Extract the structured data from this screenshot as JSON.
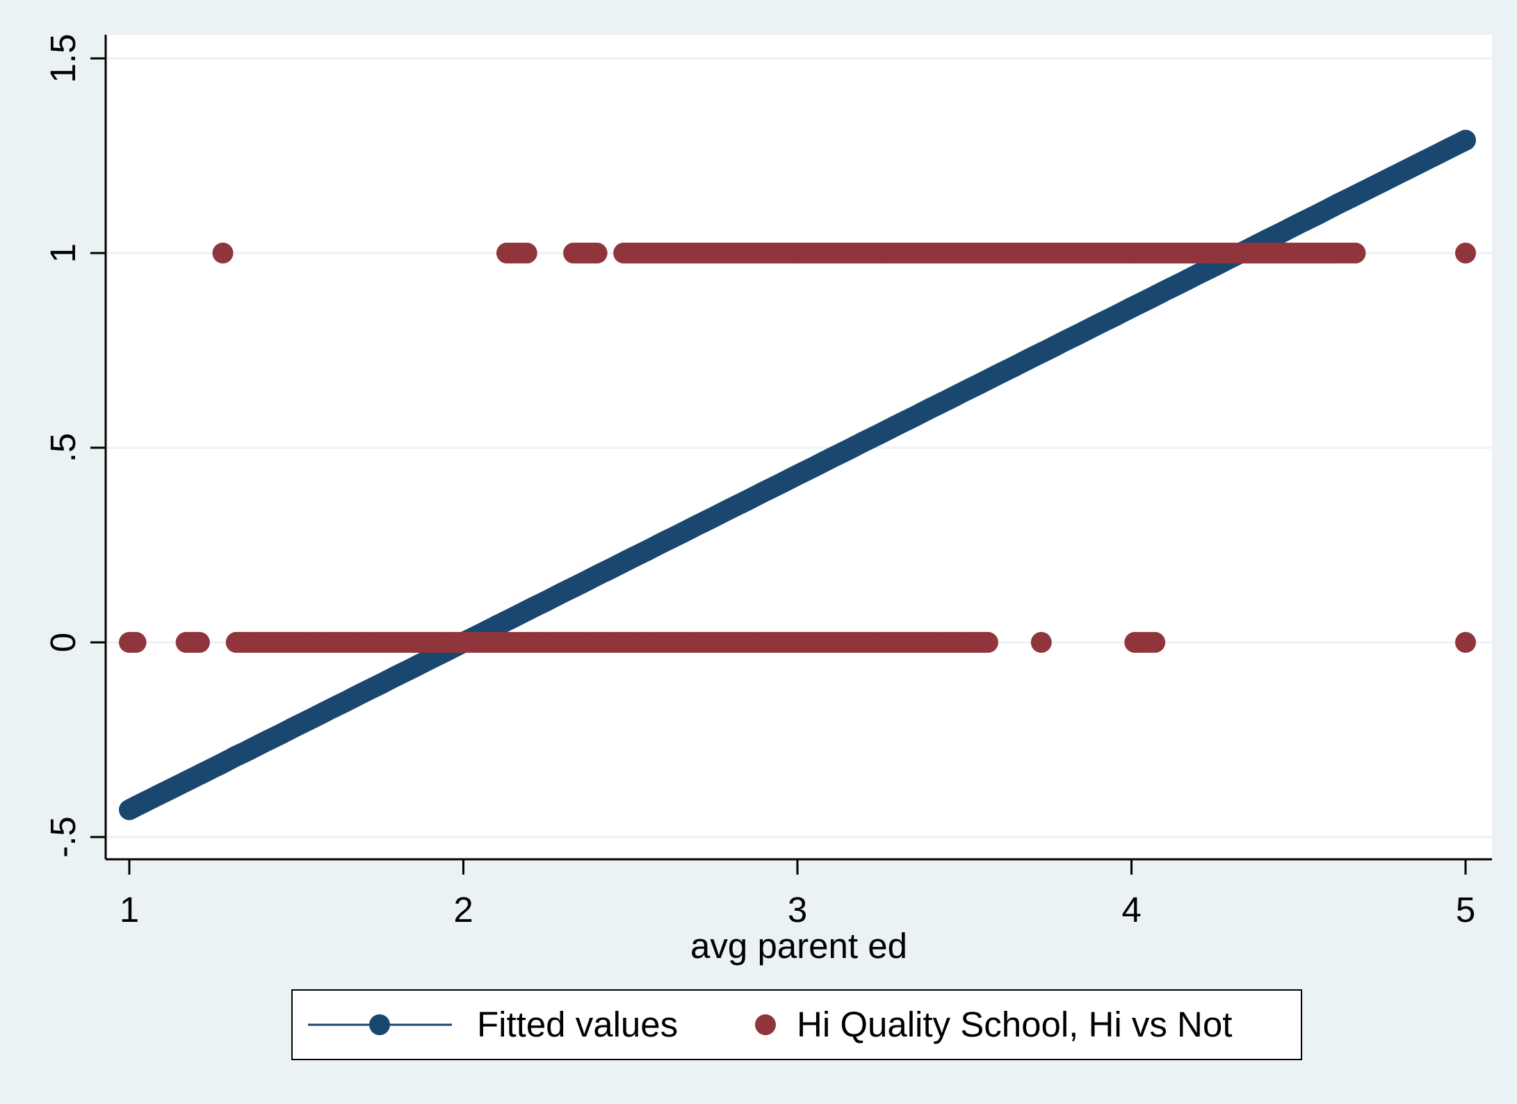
{
  "chart_data": {
    "type": "scatter",
    "xlabel": "avg parent ed",
    "ylabel": "",
    "xlim": [
      0.93,
      5.03
    ],
    "ylim": [
      -0.56,
      1.56
    ],
    "x_ticks": [
      {
        "value": 1,
        "label": "1"
      },
      {
        "value": 2,
        "label": "2"
      },
      {
        "value": 3,
        "label": "3"
      },
      {
        "value": 4,
        "label": "4"
      },
      {
        "value": 5,
        "label": "5"
      }
    ],
    "y_ticks": [
      {
        "value": -0.5,
        "label": "-.5"
      },
      {
        "value": 0,
        "label": "0"
      },
      {
        "value": 0.5,
        "label": ".5"
      },
      {
        "value": 1,
        "label": "1"
      },
      {
        "value": 1.5,
        "label": "1.5"
      }
    ],
    "grid": "horizontal",
    "legend_position": "bottom",
    "colors": {
      "background": "#eaf2f3",
      "plot_area": "#ffffff",
      "fitted": "#1a476f",
      "observed": "#90353b",
      "grid": "#eaf2f3"
    },
    "series": [
      {
        "name": "Fitted values",
        "kind": "line_with_markers",
        "color": "#1a476f",
        "line": {
          "x": [
            1,
            5
          ],
          "y": [
            -0.43,
            1.29
          ]
        },
        "points": {
          "x": [
            1,
            1.02,
            1.17,
            1.21,
            1.28,
            1.32,
            1.35,
            1.4,
            1.45,
            1.5,
            1.55,
            1.6,
            1.65,
            1.7,
            1.75,
            1.8,
            1.85,
            1.9,
            1.95,
            2,
            2.05,
            2.1,
            2.15,
            2.2,
            2.25,
            2.3,
            2.35,
            2.4,
            2.45,
            2.5,
            2.55,
            2.6,
            2.65,
            2.7,
            2.75,
            2.8,
            2.85,
            2.9,
            2.95,
            3,
            3.05,
            3.1,
            3.15,
            3.2,
            3.25,
            3.3,
            3.35,
            3.4,
            3.45,
            3.5,
            3.55,
            3.6,
            3.65,
            3.7,
            3.75,
            3.8,
            3.85,
            3.9,
            3.95,
            4,
            4.05,
            4.1,
            4.15,
            4.2,
            4.25,
            4.3,
            4.35,
            4.4,
            4.45,
            4.5,
            4.55,
            4.6,
            4.62,
            4.67,
            5
          ],
          "y": [
            -0.43,
            -0.421,
            -0.357,
            -0.34,
            -0.31,
            -0.292,
            -0.28,
            -0.258,
            -0.237,
            -0.215,
            -0.194,
            -0.172,
            -0.151,
            -0.129,
            -0.108,
            -0.086,
            -0.065,
            -0.043,
            -0.022,
            0,
            0.021,
            0.043,
            0.064,
            0.086,
            0.107,
            0.129,
            0.15,
            0.172,
            0.193,
            0.215,
            0.236,
            0.258,
            0.279,
            0.301,
            0.322,
            0.344,
            0.365,
            0.387,
            0.408,
            0.43,
            0.451,
            0.473,
            0.494,
            0.516,
            0.537,
            0.559,
            0.58,
            0.602,
            0.623,
            0.645,
            0.666,
            0.688,
            0.709,
            0.731,
            0.752,
            0.774,
            0.795,
            0.817,
            0.838,
            0.86,
            0.881,
            0.903,
            0.924,
            0.946,
            0.967,
            0.989,
            1.01,
            1.032,
            1.053,
            1.075,
            1.096,
            1.118,
            1.127,
            1.148,
            1.29
          ]
        }
      },
      {
        "name": "Hi Quality School, Hi vs Not",
        "kind": "markers",
        "color": "#90353b",
        "points": {
          "x": [
            1.28,
            2.13,
            2.19,
            2.33,
            2.36,
            2.4,
            2.48,
            2.52,
            2.56,
            2.6,
            2.65,
            2.7,
            2.75,
            2.8,
            2.85,
            2.9,
            2.95,
            3,
            3.05,
            3.1,
            3.15,
            3.2,
            3.25,
            3.3,
            3.35,
            3.4,
            3.45,
            3.5,
            3.55,
            3.6,
            3.65,
            3.7,
            3.75,
            3.8,
            3.85,
            3.9,
            3.95,
            4,
            4.05,
            4.1,
            4.15,
            4.2,
            4.25,
            4.3,
            4.35,
            4.4,
            4.45,
            4.5,
            4.55,
            4.6,
            4.67,
            5,
            1,
            1.02,
            1.17,
            1.21,
            1.32,
            1.35,
            1.4,
            1.45,
            1.5,
            1.55,
            1.6,
            1.65,
            1.7,
            1.75,
            1.8,
            1.85,
            1.9,
            1.95,
            2,
            2.05,
            2.1,
            2.15,
            2.2,
            2.25,
            2.3,
            2.35,
            2.4,
            2.45,
            2.5,
            2.55,
            2.6,
            2.65,
            2.7,
            2.75,
            2.8,
            2.85,
            2.9,
            2.95,
            3,
            3.05,
            3.1,
            3.15,
            3.2,
            3.25,
            3.3,
            3.35,
            3.4,
            3.45,
            3.5,
            3.53,
            3.57,
            3.73,
            4.01,
            4.07,
            5
          ],
          "y": [
            1,
            1,
            1,
            1,
            1,
            1,
            1,
            1,
            1,
            1,
            1,
            1,
            1,
            1,
            1,
            1,
            1,
            1,
            1,
            1,
            1,
            1,
            1,
            1,
            1,
            1,
            1,
            1,
            1,
            1,
            1,
            1,
            1,
            1,
            1,
            1,
            1,
            1,
            1,
            1,
            1,
            1,
            1,
            1,
            1,
            1,
            1,
            1,
            1,
            1,
            1,
            1,
            0,
            0,
            0,
            0,
            0,
            0,
            0,
            0,
            0,
            0,
            0,
            0,
            0,
            0,
            0,
            0,
            0,
            0,
            0,
            0,
            0,
            0,
            0,
            0,
            0,
            0,
            0,
            0,
            0,
            0,
            0,
            0,
            0,
            0,
            0,
            0,
            0,
            0,
            0,
            0,
            0,
            0,
            0,
            0,
            0,
            0,
            0,
            0,
            0,
            0,
            0,
            0,
            0,
            0,
            0
          ]
        }
      }
    ]
  },
  "legend": {
    "items": [
      "Fitted values",
      "Hi Quality School, Hi vs Not"
    ]
  }
}
